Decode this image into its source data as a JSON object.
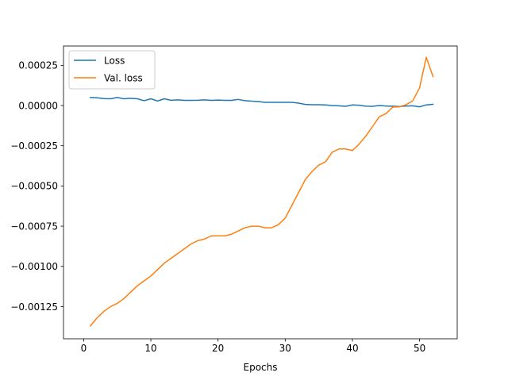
{
  "chart_data": {
    "type": "line",
    "xlabel": "Epochs",
    "ylabel": "",
    "xlim": [
      -3,
      55.6
    ],
    "ylim": [
      -0.00145,
      0.00037
    ],
    "x_ticks": [
      0,
      10,
      20,
      30,
      40,
      50
    ],
    "x_tick_labels": [
      "0",
      "10",
      "20",
      "30",
      "40",
      "50"
    ],
    "y_ticks": [
      0.00025,
      0,
      -0.00025,
      -0.0005,
      -0.00075,
      -0.001,
      -0.00125
    ],
    "y_tick_labels": [
      "0.00025",
      "0.00000",
      "−0.00025",
      "−0.00050",
      "−0.00075",
      "−0.00100",
      "−0.00125"
    ],
    "grid": false,
    "legend_position": "upper-left",
    "x": [
      1,
      2,
      3,
      4,
      5,
      6,
      7,
      8,
      9,
      10,
      11,
      12,
      13,
      14,
      15,
      16,
      17,
      18,
      19,
      20,
      21,
      22,
      23,
      24,
      25,
      26,
      27,
      28,
      29,
      30,
      31,
      32,
      33,
      34,
      35,
      36,
      37,
      38,
      39,
      40,
      41,
      42,
      43,
      44,
      45,
      46,
      47,
      48,
      49,
      50,
      51,
      52
    ],
    "series": [
      {
        "name": "Loss",
        "color": "#1f77b4",
        "values": [
          5e-05,
          4.8e-05,
          4.3e-05,
          4.2e-05,
          5e-05,
          4.2e-05,
          4.5e-05,
          4.2e-05,
          3e-05,
          4.2e-05,
          2.8e-05,
          4.2e-05,
          3.3e-05,
          3.5e-05,
          3.2e-05,
          3.2e-05,
          3.3e-05,
          3.5e-05,
          3.2e-05,
          3.4e-05,
          3.2e-05,
          3.2e-05,
          3.8e-05,
          3e-05,
          2.7e-05,
          2.5e-05,
          2e-05,
          2e-05,
          2e-05,
          2e-05,
          2e-05,
          1.5e-05,
          7e-06,
          5e-06,
          5e-06,
          4e-06,
          0.0,
          -2e-06,
          -5e-06,
          4e-06,
          2e-06,
          -4e-06,
          -5e-06,
          0.0,
          -3e-06,
          -4e-06,
          -6e-06,
          -3e-06,
          -2e-06,
          -8e-06,
          4e-06,
          8e-06
        ]
      },
      {
        "name": "Val. loss",
        "color": "#ff7f0e",
        "values": [
          -0.00137,
          -0.00132,
          -0.00128,
          -0.00125,
          -0.00123,
          -0.0012,
          -0.00116,
          -0.00112,
          -0.00109,
          -0.00106,
          -0.00102,
          -0.00098,
          -0.00095,
          -0.00092,
          -0.00089,
          -0.00086,
          -0.00084,
          -0.00083,
          -0.00081,
          -0.00081,
          -0.00081,
          -0.0008,
          -0.00078,
          -0.00076,
          -0.00075,
          -0.00075,
          -0.00076,
          -0.00076,
          -0.00074,
          -0.0007,
          -0.00062,
          -0.00054,
          -0.00046,
          -0.00041,
          -0.00037,
          -0.00035,
          -0.00029,
          -0.00027,
          -0.00027,
          -0.00028,
          -0.00024,
          -0.00019,
          -0.00013,
          -7e-05,
          -5e-05,
          -1e-05,
          -8e-06,
          5e-06,
          3e-05,
          0.00011,
          0.0003,
          0.00018
        ]
      }
    ]
  }
}
